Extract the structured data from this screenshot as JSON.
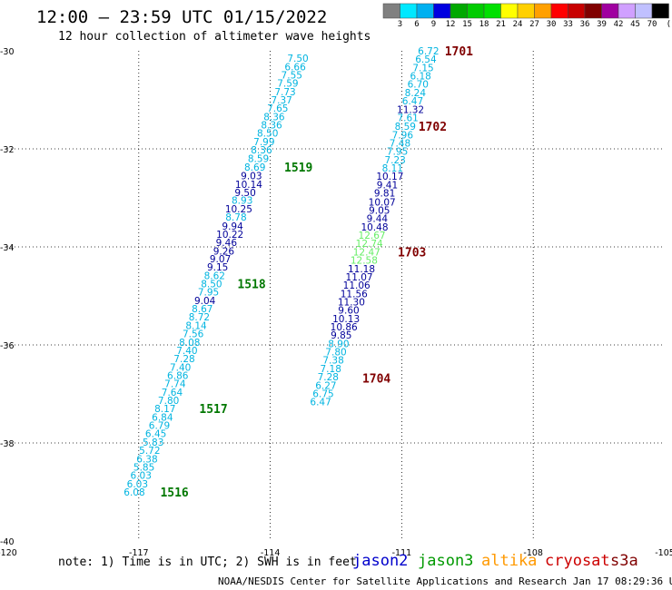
{
  "header": {
    "title": "12:00 – 23:59 UTC 01/15/2022",
    "subtitle": "12 hour collection of altimeter wave heights"
  },
  "legend": {
    "unit": "(ft)",
    "bins": [
      {
        "color": "#808080",
        "label": "3"
      },
      {
        "color": "#00e8ff",
        "label": "6"
      },
      {
        "color": "#00b0f0",
        "label": "9"
      },
      {
        "color": "#0000e0",
        "label": "12"
      },
      {
        "color": "#00a800",
        "label": "15"
      },
      {
        "color": "#00cc00",
        "label": "18"
      },
      {
        "color": "#00e000",
        "label": "21"
      },
      {
        "color": "#ffff00",
        "label": "24"
      },
      {
        "color": "#ffd000",
        "label": "27"
      },
      {
        "color": "#ffa000",
        "label": "30"
      },
      {
        "color": "#ff0000",
        "label": "33"
      },
      {
        "color": "#c80000",
        "label": "36"
      },
      {
        "color": "#800000",
        "label": "39"
      },
      {
        "color": "#a000a0",
        "label": "42"
      },
      {
        "color": "#d0a0ff",
        "label": "45"
      },
      {
        "color": "#c0c0ff",
        "label": "70"
      },
      {
        "color": "#000000",
        "label": ""
      }
    ]
  },
  "footer": {
    "note": "note: 1) Time is in UTC; 2) SWH is in feet",
    "satellites": [
      {
        "name": "jason2",
        "color": "#0000cc"
      },
      {
        "name": "jason3",
        "color": "#009900"
      },
      {
        "name": "altika",
        "color": "#ff9900"
      },
      {
        "name": "cryosat",
        "color": "#cc0000"
      },
      {
        "name": "s3a",
        "color": "#800000"
      }
    ],
    "credit": "NOAA/NESDIS Center for Satellite Applications and Research   Jan 17 08:29:36 UTC 2022"
  },
  "chart_data": {
    "type": "scatter",
    "title": "12:00 – 23:59 UTC 01/15/2022",
    "subtitle": "12 hour collection of altimeter wave heights",
    "xlabel": "",
    "ylabel": "",
    "xlim": [
      -120,
      -105
    ],
    "ylim": [
      -40,
      -30
    ],
    "x_ticks": [
      "-120",
      "-117",
      "-114",
      "-111",
      "-108",
      "-105"
    ],
    "y_ticks": [
      "-30",
      "-32",
      "-34",
      "-36",
      "-38",
      "-40"
    ],
    "grid": true,
    "colors": {
      "cyan": "#00b4e0",
      "dark_blue": "#000099",
      "light_green": "#66ee66"
    },
    "series": [
      {
        "name": "jason3",
        "points": [
          {
            "x": -113.37,
            "y": -30.15,
            "label": "7.50",
            "color": "cyan"
          },
          {
            "x": -113.43,
            "y": -30.32,
            "label": "6.66",
            "color": "cyan"
          },
          {
            "x": -113.51,
            "y": -30.49,
            "label": "7.55",
            "color": "cyan"
          },
          {
            "x": -113.6,
            "y": -30.66,
            "label": "7.59",
            "color": "cyan"
          },
          {
            "x": -113.66,
            "y": -30.83,
            "label": "7.73",
            "color": "cyan"
          },
          {
            "x": -113.74,
            "y": -31.0,
            "label": "7.37",
            "color": "cyan"
          },
          {
            "x": -113.83,
            "y": -31.17,
            "label": "7.65",
            "color": "cyan"
          },
          {
            "x": -113.91,
            "y": -31.34,
            "label": "8.36",
            "color": "cyan"
          },
          {
            "x": -113.97,
            "y": -31.51,
            "label": "8.36",
            "color": "cyan"
          },
          {
            "x": -114.06,
            "y": -31.68,
            "label": "8.50",
            "color": "cyan"
          },
          {
            "x": -114.14,
            "y": -31.85,
            "label": "7.99",
            "color": "cyan"
          },
          {
            "x": -114.2,
            "y": -32.02,
            "label": "8.36",
            "color": "cyan"
          },
          {
            "x": -114.27,
            "y": -32.19,
            "label": "8.59",
            "color": "cyan"
          },
          {
            "x": -114.35,
            "y": -32.37,
            "label": "8.69",
            "color": "cyan"
          },
          {
            "x": -114.43,
            "y": -32.55,
            "label": "9.03",
            "color": "dark_blue"
          },
          {
            "x": -114.49,
            "y": -32.72,
            "label": "10.14",
            "color": "dark_blue"
          },
          {
            "x": -114.57,
            "y": -32.89,
            "label": "9.50",
            "color": "dark_blue"
          },
          {
            "x": -114.64,
            "y": -33.05,
            "label": "8.93",
            "color": "cyan"
          },
          {
            "x": -114.72,
            "y": -33.22,
            "label": "10.25",
            "color": "dark_blue"
          },
          {
            "x": -114.78,
            "y": -33.39,
            "label": "8.78",
            "color": "cyan"
          },
          {
            "x": -114.86,
            "y": -33.57,
            "label": "9.94",
            "color": "dark_blue"
          },
          {
            "x": -114.92,
            "y": -33.74,
            "label": "10.22",
            "color": "dark_blue"
          },
          {
            "x": -115.0,
            "y": -33.91,
            "label": "9.46",
            "color": "dark_blue"
          },
          {
            "x": -115.06,
            "y": -34.08,
            "label": "9.26",
            "color": "dark_blue"
          },
          {
            "x": -115.14,
            "y": -34.24,
            "label": "9.07",
            "color": "dark_blue"
          },
          {
            "x": -115.2,
            "y": -34.41,
            "label": "9.15",
            "color": "dark_blue"
          },
          {
            "x": -115.27,
            "y": -34.58,
            "label": "8.62",
            "color": "cyan"
          },
          {
            "x": -115.34,
            "y": -34.75,
            "label": "8.50",
            "color": "cyan"
          },
          {
            "x": -115.41,
            "y": -34.92,
            "label": "7.95",
            "color": "cyan"
          },
          {
            "x": -115.49,
            "y": -35.09,
            "label": "9.04",
            "color": "dark_blue"
          },
          {
            "x": -115.55,
            "y": -35.26,
            "label": "8.67",
            "color": "cyan"
          },
          {
            "x": -115.62,
            "y": -35.43,
            "label": "8.72",
            "color": "cyan"
          },
          {
            "x": -115.69,
            "y": -35.6,
            "label": "8.14",
            "color": "cyan"
          },
          {
            "x": -115.76,
            "y": -35.77,
            "label": "7.56",
            "color": "cyan"
          },
          {
            "x": -115.84,
            "y": -35.94,
            "label": "8.08",
            "color": "cyan"
          },
          {
            "x": -115.9,
            "y": -36.11,
            "label": "7.40",
            "color": "cyan"
          },
          {
            "x": -115.96,
            "y": -36.28,
            "label": "7.28",
            "color": "cyan"
          },
          {
            "x": -116.05,
            "y": -36.45,
            "label": "7.40",
            "color": "cyan"
          },
          {
            "x": -116.11,
            "y": -36.62,
            "label": "6.86",
            "color": "cyan"
          },
          {
            "x": -116.17,
            "y": -36.79,
            "label": "7.74",
            "color": "cyan"
          },
          {
            "x": -116.24,
            "y": -36.96,
            "label": "7.64",
            "color": "cyan"
          },
          {
            "x": -116.32,
            "y": -37.13,
            "label": "7.80",
            "color": "cyan"
          },
          {
            "x": -116.4,
            "y": -37.3,
            "label": "8.17",
            "color": "cyan"
          },
          {
            "x": -116.46,
            "y": -37.47,
            "label": "6.84",
            "color": "cyan"
          },
          {
            "x": -116.53,
            "y": -37.64,
            "label": "6.79",
            "color": "cyan"
          },
          {
            "x": -116.61,
            "y": -37.81,
            "label": "6.45",
            "color": "cyan"
          },
          {
            "x": -116.67,
            "y": -37.98,
            "label": "5.83",
            "color": "cyan"
          },
          {
            "x": -116.75,
            "y": -38.15,
            "label": "5.72",
            "color": "cyan"
          },
          {
            "x": -116.81,
            "y": -38.32,
            "label": "6.38",
            "color": "cyan"
          },
          {
            "x": -116.88,
            "y": -38.49,
            "label": "5.85",
            "color": "cyan"
          },
          {
            "x": -116.95,
            "y": -38.66,
            "label": "6.03",
            "color": "cyan"
          },
          {
            "x": -117.03,
            "y": -38.83,
            "label": "6.03",
            "color": "cyan"
          },
          {
            "x": -117.1,
            "y": -39.0,
            "label": "6.08",
            "color": "cyan"
          }
        ]
      },
      {
        "name": "jason2",
        "points": [
          {
            "x": -110.39,
            "y": -30.0,
            "label": "6.72",
            "color": "cyan"
          },
          {
            "x": -110.45,
            "y": -30.17,
            "label": "6.54",
            "color": "cyan"
          },
          {
            "x": -110.51,
            "y": -30.34,
            "label": "7.15",
            "color": "cyan"
          },
          {
            "x": -110.57,
            "y": -30.51,
            "label": "6.18",
            "color": "cyan"
          },
          {
            "x": -110.63,
            "y": -30.68,
            "label": "6.70",
            "color": "cyan"
          },
          {
            "x": -110.69,
            "y": -30.85,
            "label": "8.24",
            "color": "cyan"
          },
          {
            "x": -110.75,
            "y": -31.02,
            "label": "6.47",
            "color": "cyan"
          },
          {
            "x": -110.8,
            "y": -31.19,
            "label": "11.32",
            "color": "dark_blue"
          },
          {
            "x": -110.86,
            "y": -31.36,
            "label": "7.61",
            "color": "cyan"
          },
          {
            "x": -110.92,
            "y": -31.54,
            "label": "8.59",
            "color": "cyan"
          },
          {
            "x": -110.98,
            "y": -31.71,
            "label": "7.96",
            "color": "cyan"
          },
          {
            "x": -111.04,
            "y": -31.88,
            "label": "7.48",
            "color": "cyan"
          },
          {
            "x": -111.1,
            "y": -32.05,
            "label": "7.95",
            "color": "cyan"
          },
          {
            "x": -111.15,
            "y": -32.22,
            "label": "7.23",
            "color": "cyan"
          },
          {
            "x": -111.21,
            "y": -32.39,
            "label": "8.11",
            "color": "cyan"
          },
          {
            "x": -111.27,
            "y": -32.56,
            "label": "10.17",
            "color": "dark_blue"
          },
          {
            "x": -111.33,
            "y": -32.73,
            "label": "9.41",
            "color": "dark_blue"
          },
          {
            "x": -111.39,
            "y": -32.9,
            "label": "9.81",
            "color": "dark_blue"
          },
          {
            "x": -111.45,
            "y": -33.08,
            "label": "10.07",
            "color": "dark_blue"
          },
          {
            "x": -111.51,
            "y": -33.25,
            "label": "9.05",
            "color": "dark_blue"
          },
          {
            "x": -111.56,
            "y": -33.42,
            "label": "9.44",
            "color": "dark_blue"
          },
          {
            "x": -111.62,
            "y": -33.59,
            "label": "10.48",
            "color": "dark_blue"
          },
          {
            "x": -111.68,
            "y": -33.76,
            "label": "12.67",
            "color": "light_green"
          },
          {
            "x": -111.74,
            "y": -33.93,
            "label": "12.74",
            "color": "light_green"
          },
          {
            "x": -111.8,
            "y": -34.1,
            "label": "12.47",
            "color": "light_green"
          },
          {
            "x": -111.86,
            "y": -34.27,
            "label": "12.58",
            "color": "light_green"
          },
          {
            "x": -111.92,
            "y": -34.44,
            "label": "11.18",
            "color": "dark_blue"
          },
          {
            "x": -111.97,
            "y": -34.61,
            "label": "11.07",
            "color": "dark_blue"
          },
          {
            "x": -112.03,
            "y": -34.78,
            "label": "11.06",
            "color": "dark_blue"
          },
          {
            "x": -112.09,
            "y": -34.95,
            "label": "11.56",
            "color": "dark_blue"
          },
          {
            "x": -112.15,
            "y": -35.12,
            "label": "11.30",
            "color": "dark_blue"
          },
          {
            "x": -112.21,
            "y": -35.29,
            "label": "9.60",
            "color": "dark_blue"
          },
          {
            "x": -112.27,
            "y": -35.46,
            "label": "10.13",
            "color": "dark_blue"
          },
          {
            "x": -112.32,
            "y": -35.63,
            "label": "10.86",
            "color": "dark_blue"
          },
          {
            "x": -112.38,
            "y": -35.8,
            "label": "9.85",
            "color": "dark_blue"
          },
          {
            "x": -112.44,
            "y": -35.97,
            "label": "8.90",
            "color": "cyan"
          },
          {
            "x": -112.5,
            "y": -36.14,
            "label": "7.80",
            "color": "cyan"
          },
          {
            "x": -112.56,
            "y": -36.31,
            "label": "7.38",
            "color": "cyan"
          },
          {
            "x": -112.62,
            "y": -36.48,
            "label": "7.18",
            "color": "cyan"
          },
          {
            "x": -112.68,
            "y": -36.65,
            "label": "7.28",
            "color": "cyan"
          },
          {
            "x": -112.73,
            "y": -36.82,
            "label": "6.27",
            "color": "cyan"
          },
          {
            "x": -112.79,
            "y": -36.99,
            "label": "6.75",
            "color": "cyan"
          },
          {
            "x": -112.85,
            "y": -37.16,
            "label": "6.47",
            "color": "cyan"
          }
        ]
      }
    ],
    "track_labels": [
      {
        "text": "1701",
        "x": -110.02,
        "y": -30.0,
        "color": "#800000"
      },
      {
        "text": "1702",
        "x": -110.62,
        "y": -31.54,
        "color": "#800000"
      },
      {
        "text": "1703",
        "x": -111.09,
        "y": -34.1,
        "color": "#800000"
      },
      {
        "text": "1704",
        "x": -111.9,
        "y": -36.68,
        "color": "#800000"
      },
      {
        "text": "1519",
        "x": -113.68,
        "y": -32.37,
        "color": "#007700"
      },
      {
        "text": "1518",
        "x": -114.75,
        "y": -34.75,
        "color": "#007700"
      },
      {
        "text": "1517",
        "x": -115.62,
        "y": -37.3,
        "color": "#007700"
      },
      {
        "text": "1516",
        "x": -116.51,
        "y": -39.0,
        "color": "#007700"
      }
    ]
  }
}
